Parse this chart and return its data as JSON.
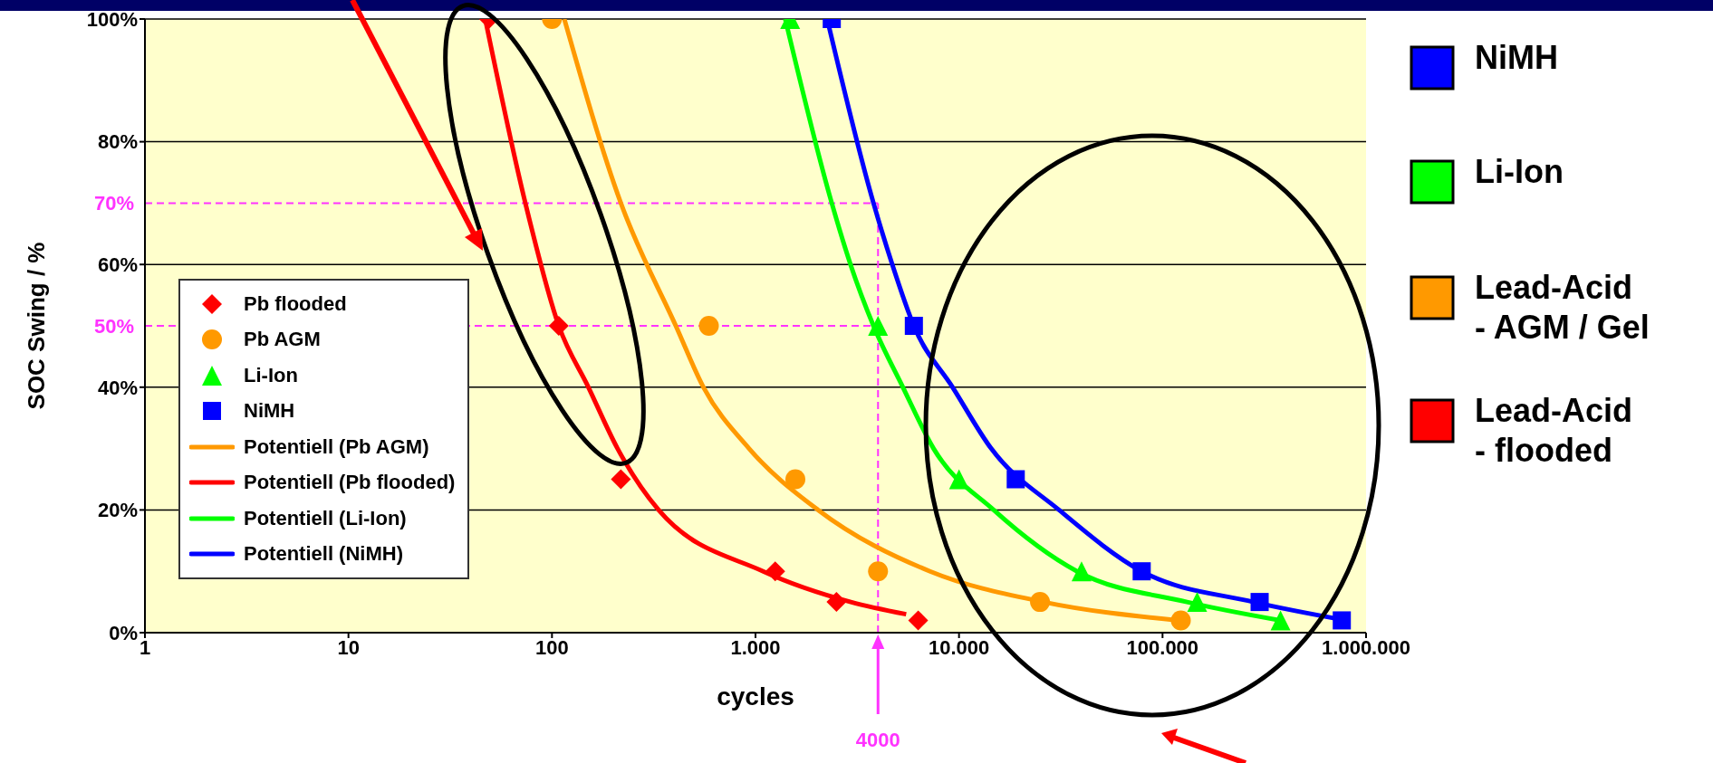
{
  "chart_data": {
    "type": "scatter",
    "xlabel": "cycles",
    "ylabel": "SOC Swing / %",
    "log": "x",
    "xlim": [
      1,
      1000000
    ],
    "ylim": [
      0,
      100
    ],
    "xticks": [
      1,
      10,
      100,
      {
        "value": 1000,
        "label": "1.000"
      },
      {
        "value": 10000,
        "label": "10.000"
      },
      {
        "value": 100000,
        "label": "100.000"
      },
      {
        "value": 1000000,
        "label": "1.000.000"
      }
    ],
    "yticks": [
      {
        "value": 0,
        "label": "0%"
      },
      {
        "value": 20,
        "label": "20%"
      },
      {
        "value": 40,
        "label": "40%"
      },
      {
        "value": 60,
        "label": "60%"
      },
      {
        "value": 80,
        "label": "80%"
      },
      {
        "value": 100,
        "label": "100%"
      }
    ],
    "grid": "y",
    "legend": "bottom left",
    "series": [
      {
        "name": "Pb flooded",
        "marker": "diamond",
        "color": "#ff0000",
        "x": [
          49,
          108,
          218,
          1250,
          2500,
          6300
        ],
        "values": [
          100,
          50,
          25,
          10,
          5,
          2
        ]
      },
      {
        "name": "Pb AGM",
        "marker": "circle",
        "color": "#ff9900",
        "x": [
          100,
          590,
          1570,
          4000,
          25000,
          123000
        ],
        "values": [
          100,
          50,
          25,
          10,
          5,
          2
        ]
      },
      {
        "name": "Li-Ion",
        "marker": "triangle",
        "color": "#00ff00",
        "x": [
          1480,
          4000,
          10000,
          40000,
          148000,
          380000
        ],
        "values": [
          100,
          50,
          25,
          10,
          5,
          2
        ]
      },
      {
        "name": "NiMH",
        "marker": "square",
        "color": "#0000ff",
        "x": [
          2370,
          6000,
          19000,
          79000,
          300000,
          760000
        ],
        "values": [
          100,
          50,
          25,
          10,
          5,
          2
        ]
      },
      {
        "name": "Potentiell (Pb AGM)",
        "type": "line",
        "marker": "none",
        "line_style": "solid",
        "color": "#ff9900",
        "x": [
          115,
          218,
          406,
          555,
          930,
          2030,
          7200,
          26000,
          120000
        ],
        "values": [
          100,
          70,
          50,
          40,
          30,
          20,
          10,
          5,
          2
        ]
      },
      {
        "name": "Potentiell (Pb flooded)",
        "type": "line",
        "marker": "none",
        "line_style": "solid",
        "color": "#ff0000",
        "x": [
          47,
          74,
          108,
          151,
          210,
          334,
          1090,
          2940,
          5500
        ],
        "values": [
          100,
          70,
          50,
          40,
          30,
          20,
          10,
          5,
          3
        ]
      },
      {
        "name": "Potentiell (Li-Ion)",
        "type": "line",
        "marker": "none",
        "line_style": "solid",
        "color": "#00ff00",
        "x": [
          1400,
          2370,
          2930,
          3800,
          5300,
          7500,
          14800,
          38000,
          132000,
          380000
        ],
        "values": [
          100,
          70,
          60,
          50,
          40,
          30,
          20,
          10,
          5,
          2
        ]
      },
      {
        "name": "Potentiell (NiMH)",
        "type": "line",
        "marker": "none",
        "line_style": "solid",
        "color": "#0000ff",
        "x": [
          2250,
          3800,
          4700,
          6000,
          9300,
          14400,
          31000,
          79000,
          280000,
          800000
        ],
        "values": [
          100,
          70,
          60,
          50,
          40,
          30,
          20,
          10,
          5,
          2
        ]
      }
    ],
    "ref_lines": [
      {
        "axis": "y",
        "value": 70,
        "label": "70%",
        "color": "#ff33ff",
        "line_style": "dashed"
      },
      {
        "axis": "y",
        "value": 50,
        "label": "50%",
        "color": "#ff33ff",
        "line_style": "dashed"
      },
      {
        "axis": "x",
        "value": 4000,
        "label": "4000",
        "color": "#ff33ff",
        "line_style": "dashed"
      }
    ],
    "annotations": [
      "NiMH",
      "Li-Ion",
      "Lead-Acid\n- AGM / Gel",
      "Lead-Acid\n- flooded"
    ]
  }
}
